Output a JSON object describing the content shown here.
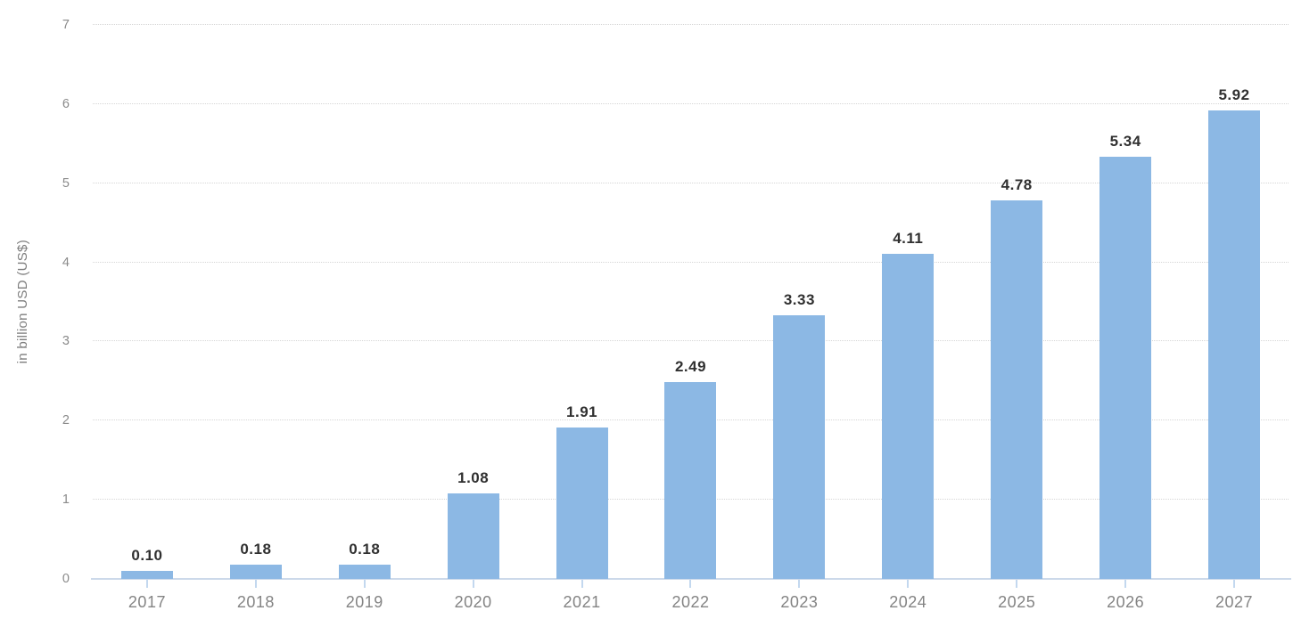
{
  "chart_data": {
    "type": "bar",
    "categories": [
      "2017",
      "2018",
      "2019",
      "2020",
      "2021",
      "2022",
      "2023",
      "2024",
      "2025",
      "2026",
      "2027"
    ],
    "values": [
      0.1,
      0.18,
      0.18,
      1.08,
      1.91,
      2.49,
      3.33,
      4.11,
      4.78,
      5.34,
      5.92
    ],
    "value_labels": [
      "0.10",
      "0.18",
      "0.18",
      "1.08",
      "1.91",
      "2.49",
      "3.33",
      "4.11",
      "4.78",
      "5.34",
      "5.92"
    ],
    "title": "",
    "xlabel": "",
    "ylabel": "in billion USD (US$)",
    "ylim": [
      0,
      7
    ],
    "yticks": [
      0,
      1,
      2,
      3,
      4,
      5,
      6,
      7
    ],
    "grid": true,
    "legend": false,
    "colors": {
      "bar": "#8CB8E4",
      "value_label": "#303030",
      "axis_text": "#848484",
      "y_tick_text": "#8a8a8a",
      "gridline": "#d6d6d6",
      "baseline": "#ccd9ea",
      "x_tick": "#c3d8ef",
      "background": "#ffffff"
    }
  }
}
